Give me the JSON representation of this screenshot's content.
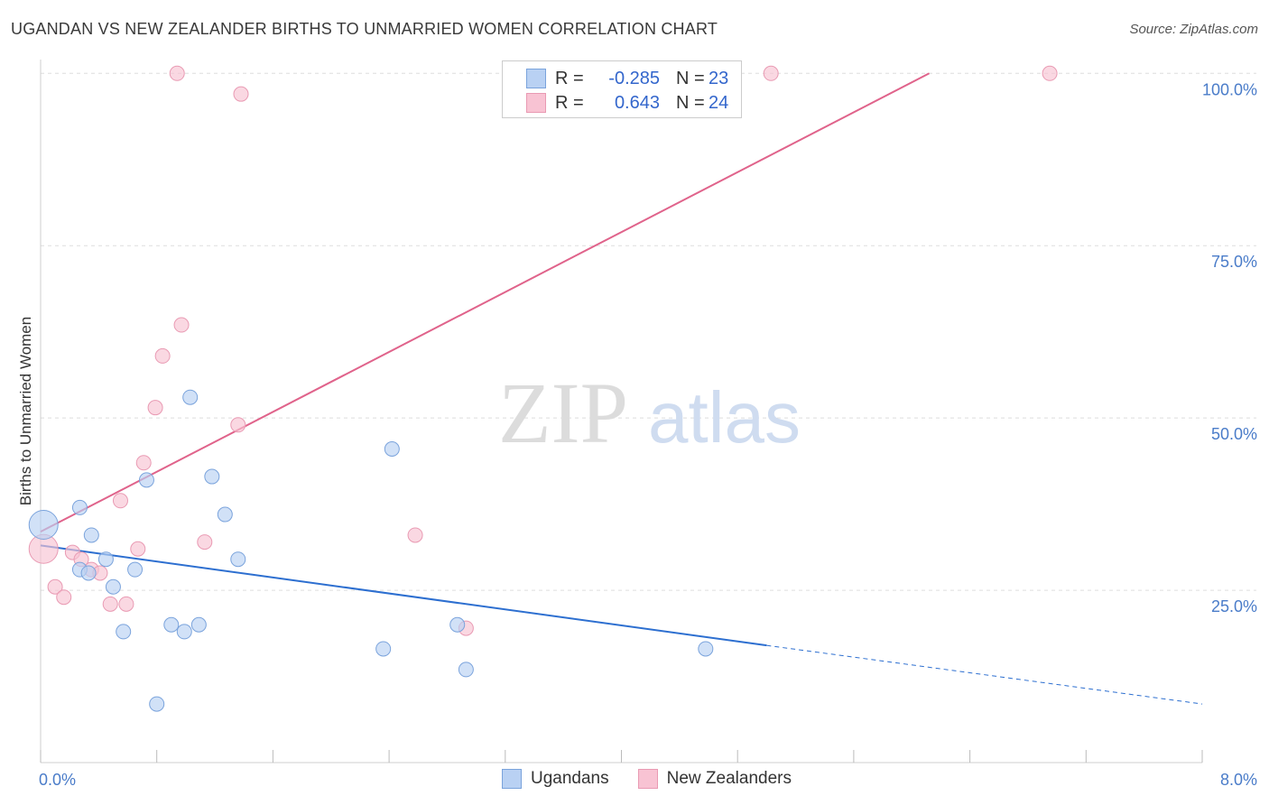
{
  "header": {
    "title": "UGANDAN VS NEW ZEALANDER BIRTHS TO UNMARRIED WOMEN CORRELATION CHART",
    "source": "Source: ZipAtlas.com"
  },
  "legend": {
    "series1": {
      "r_label": "R =",
      "r_value": "-0.285",
      "n_label": "N =",
      "n_value": "23"
    },
    "series2": {
      "r_label": "R =",
      "r_value": "0.643",
      "n_label": "N =",
      "n_value": "24"
    }
  },
  "bottom_legend": {
    "series1": "Ugandans",
    "series2": "New Zealanders"
  },
  "watermark": {
    "zip": "ZIP",
    "atlas": "atlas"
  },
  "colors": {
    "blue_fill": "#b9d1f3",
    "blue_stroke": "#7aa3dc",
    "blue_line": "#2d6fd0",
    "pink_fill": "#f8c3d3",
    "pink_stroke": "#e99ab3",
    "pink_line": "#e0638b",
    "tick_text": "#4a7cc9",
    "grid": "#dddddd"
  },
  "chart_data": {
    "type": "scatter",
    "title": "UGANDAN VS NEW ZEALANDER BIRTHS TO UNMARRIED WOMEN CORRELATION CHART",
    "xlabel": "",
    "ylabel": "Births to Unmarried Women",
    "xlim": [
      0,
      8
    ],
    "ylim": [
      0,
      102
    ],
    "x_tick_labels": [
      "0.0%",
      "8.0%"
    ],
    "y_ticks": [
      25,
      50,
      75,
      100
    ],
    "y_tick_labels": [
      "25.0%",
      "50.0%",
      "75.0%",
      "100.0%"
    ],
    "grid": "horizontal dashed",
    "legend_position": "top-center",
    "series": [
      {
        "name": "Ugandans",
        "points": [
          [
            0.02,
            34.5
          ],
          [
            0.27,
            28.0
          ],
          [
            0.33,
            27.5
          ],
          [
            0.27,
            37.0
          ],
          [
            0.35,
            33.0
          ],
          [
            0.45,
            29.5
          ],
          [
            0.5,
            25.5
          ],
          [
            0.57,
            19.0
          ],
          [
            0.65,
            28.0
          ],
          [
            0.73,
            41.0
          ],
          [
            0.8,
            8.5
          ],
          [
            0.9,
            20.0
          ],
          [
            0.99,
            19.0
          ],
          [
            1.03,
            53.0
          ],
          [
            1.09,
            20.0
          ],
          [
            1.18,
            41.5
          ],
          [
            1.27,
            36.0
          ],
          [
            1.36,
            29.5
          ],
          [
            2.36,
            16.5
          ],
          [
            2.42,
            45.5
          ],
          [
            2.87,
            20.0
          ],
          [
            2.93,
            13.5
          ],
          [
            4.58,
            16.5
          ]
        ],
        "trend": {
          "x0": 0,
          "y0": 31.5,
          "x1": 5.0,
          "y1": 17.0,
          "dash_to_x": 8.0,
          "dash_to_y": 8.5
        }
      },
      {
        "name": "New Zealanders",
        "points": [
          [
            0.02,
            31.0
          ],
          [
            0.1,
            25.5
          ],
          [
            0.16,
            24.0
          ],
          [
            0.22,
            30.5
          ],
          [
            0.28,
            29.5
          ],
          [
            0.35,
            28.0
          ],
          [
            0.41,
            27.5
          ],
          [
            0.48,
            23.0
          ],
          [
            0.55,
            38.0
          ],
          [
            0.59,
            23.0
          ],
          [
            0.67,
            31.0
          ],
          [
            0.71,
            43.5
          ],
          [
            0.79,
            51.5
          ],
          [
            0.84,
            59.0
          ],
          [
            0.94,
            100.0
          ],
          [
            0.97,
            63.5
          ],
          [
            1.13,
            32.0
          ],
          [
            1.36,
            49.0
          ],
          [
            1.38,
            97.0
          ],
          [
            2.58,
            33.0
          ],
          [
            2.93,
            19.5
          ],
          [
            3.72,
            100.0
          ],
          [
            5.03,
            100.0
          ],
          [
            6.95,
            100.0
          ]
        ],
        "trend": {
          "x0": 0,
          "y0": 33.5,
          "x1": 6.12,
          "y1": 100.0
        }
      }
    ]
  }
}
